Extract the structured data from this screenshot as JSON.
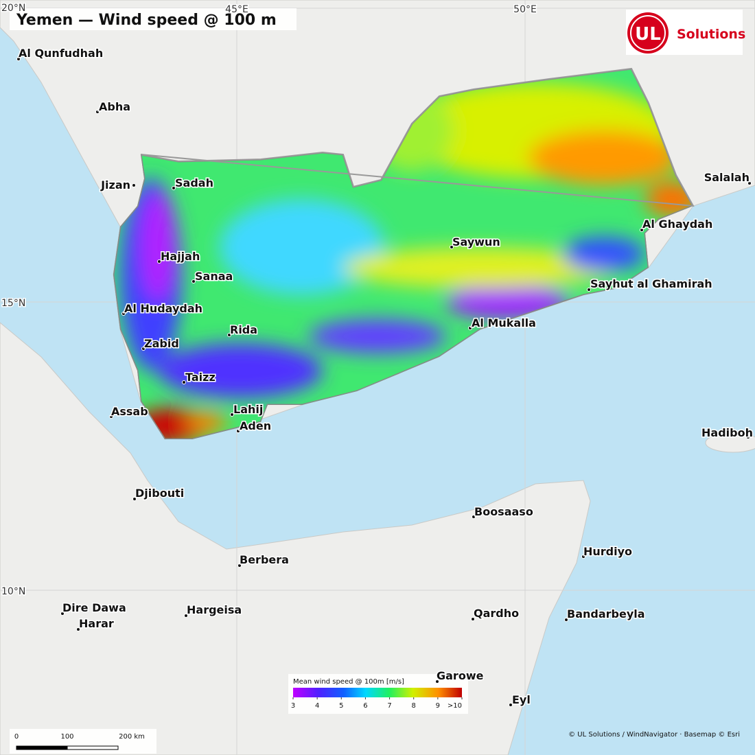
{
  "title": "Yemen — Wind speed @ 100 m",
  "logo": {
    "mark": "UL",
    "text": "Solutions"
  },
  "graticule": {
    "lat": [
      "20°N",
      "15°N",
      "10°N"
    ],
    "lon": [
      "45°E",
      "50°E"
    ]
  },
  "cities": [
    "Al Qunfudhah",
    "Abha",
    "Jizan",
    "Sadah",
    "Hajjah",
    "Sanaa",
    "Al Hudaydah",
    "Zabid",
    "Rida",
    "Taizz",
    "Assab",
    "Lahij",
    "Aden",
    "Djibouti",
    "Saywun",
    "Al Ghaydah",
    "Sayhut al Ghamirah",
    "Al Mukalla",
    "Salalah",
    "Hadiboh",
    "Boosaaso",
    "Hurdiyo",
    "Berbera",
    "Dire Dawa",
    "Harar",
    "Hargeisa",
    "Qardho",
    "Bandarbeyla",
    "Garowe",
    "Eyl"
  ],
  "legend": {
    "title": "Mean wind speed @ 100m [m/s]",
    "ticks": [
      3,
      4,
      5,
      6,
      7,
      8,
      9,
      {
        "value": 10,
        "label": ">10"
      }
    ]
  },
  "scale_bar": {
    "ticks": [
      0,
      100,
      {
        "value": 200,
        "label": "200 km"
      }
    ]
  },
  "attribution": "© UL Solutions / WindNavigator · Basemap © Esri"
}
